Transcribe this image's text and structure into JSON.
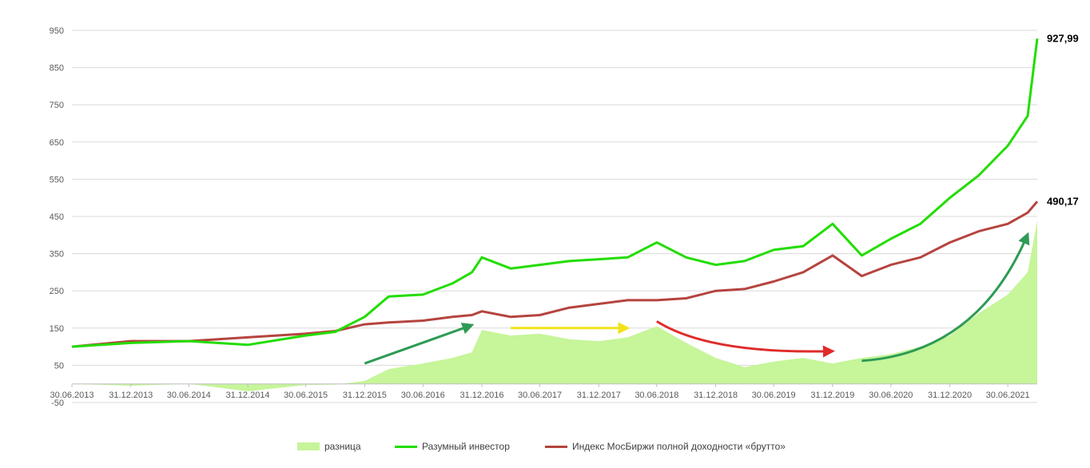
{
  "chart_data": {
    "type": "area",
    "ylim": [
      -50,
      950
    ],
    "yticks": [
      950,
      850,
      750,
      650,
      550,
      450,
      350,
      250,
      150,
      50,
      -50
    ],
    "x_tick_labels": [
      "30.06.2013",
      "31.12.2013",
      "30.06.2014",
      "31.12.2014",
      "30.06.2015",
      "31.12.2015",
      "30.06.2016",
      "31.12.2016",
      "30.06.2017",
      "31.12.2017",
      "30.06.2018",
      "31.12.2018",
      "30.06.2019",
      "31.12.2019",
      "30.06.2020",
      "31.12.2020",
      "30.06.2021"
    ],
    "grid": "horizontal",
    "legend_position": "bottom",
    "colors": {
      "difference": "#c6f59a",
      "investor": "#22dd00",
      "index": "#b5443f"
    },
    "series": [
      {
        "name": "разница",
        "type": "area",
        "x": [
          "30.06.2013",
          "31.12.2013",
          "30.06.2014",
          "31.12.2014",
          "30.06.2015",
          "30.09.2015",
          "31.12.2015",
          "15.03.2016",
          "30.06.2016",
          "30.09.2016",
          "30.11.2016",
          "31.12.2016",
          "31.03.2017",
          "30.06.2017",
          "30.09.2017",
          "31.12.2017",
          "31.03.2018",
          "30.06.2018",
          "30.09.2018",
          "31.12.2018",
          "31.03.2019",
          "30.06.2019",
          "30.09.2019",
          "31.12.2019",
          "31.03.2020",
          "30.06.2020",
          "30.09.2020",
          "31.12.2020",
          "31.03.2021",
          "30.06.2021",
          "31.08.2021",
          "30.09.2021"
        ],
        "values": [
          0,
          -5,
          0,
          -20,
          -3,
          -2,
          8,
          40,
          55,
          70,
          85,
          145,
          130,
          135,
          120,
          115,
          125,
          155,
          110,
          70,
          45,
          60,
          70,
          55,
          70,
          80,
          100,
          130,
          190,
          240,
          300,
          438
        ]
      },
      {
        "name": "Разумный инвестор",
        "type": "line",
        "x": [
          "30.06.2013",
          "31.12.2013",
          "30.06.2014",
          "31.12.2014",
          "30.06.2015",
          "30.09.2015",
          "31.12.2015",
          "15.03.2016",
          "30.06.2016",
          "30.09.2016",
          "30.11.2016",
          "31.12.2016",
          "31.03.2017",
          "30.06.2017",
          "30.09.2017",
          "31.12.2017",
          "31.03.2018",
          "30.06.2018",
          "30.09.2018",
          "31.12.2018",
          "31.03.2019",
          "30.06.2019",
          "30.09.2019",
          "31.12.2019",
          "31.03.2020",
          "30.06.2020",
          "30.09.2020",
          "31.12.2020",
          "31.03.2021",
          "30.06.2021",
          "31.08.2021",
          "30.09.2021"
        ],
        "values": [
          100,
          110,
          115,
          105,
          130,
          140,
          180,
          235,
          240,
          270,
          300,
          340,
          310,
          320,
          330,
          335,
          340,
          380,
          340,
          320,
          330,
          360,
          370,
          430,
          345,
          390,
          430,
          500,
          560,
          640,
          720,
          927.99
        ]
      },
      {
        "name": "Индекс МосБиржи полной доходности «брутто»",
        "type": "line",
        "x": [
          "30.06.2013",
          "31.12.2013",
          "30.06.2014",
          "31.12.2014",
          "30.06.2015",
          "30.09.2015",
          "31.12.2015",
          "15.03.2016",
          "30.06.2016",
          "30.09.2016",
          "30.11.2016",
          "31.12.2016",
          "31.03.2017",
          "30.06.2017",
          "30.09.2017",
          "31.12.2017",
          "31.03.2018",
          "30.06.2018",
          "30.09.2018",
          "31.12.2018",
          "31.03.2019",
          "30.06.2019",
          "30.09.2019",
          "31.12.2019",
          "31.03.2020",
          "30.06.2020",
          "30.09.2020",
          "31.12.2020",
          "31.03.2021",
          "30.06.2021",
          "31.08.2021",
          "30.09.2021"
        ],
        "values": [
          100,
          115,
          115,
          125,
          135,
          142,
          160,
          165,
          170,
          180,
          185,
          195,
          180,
          185,
          205,
          215,
          225,
          225,
          230,
          250,
          255,
          275,
          300,
          345,
          290,
          320,
          340,
          380,
          410,
          430,
          460,
          490.17
        ]
      }
    ],
    "end_labels": {
      "investor": "927,99",
      "index": "490,17"
    },
    "annotations": [
      {
        "color": "#2e9b55",
        "from_x": "31.12.2015",
        "from_y": 55,
        "to_x": "30.11.2016",
        "to_y": 158,
        "curved": false
      },
      {
        "color": "#f2e21b",
        "from_x": "31.03.2017",
        "from_y": 150,
        "to_x": "31.03.2018",
        "to_y": 150,
        "curved": false
      },
      {
        "color": "#e02b2b",
        "from_x": "30.06.2018",
        "from_y": 168,
        "to_x": "31.12.2019",
        "to_y": 88,
        "curved": true
      },
      {
        "color": "#2e9b55",
        "from_x": "31.03.2020",
        "from_y": 62,
        "to_x": "31.08.2021",
        "to_y": 402,
        "curved": true
      }
    ]
  },
  "legend": {
    "difference": "разница",
    "investor": "Разумный инвестор",
    "index": "Индекс МосБиржи полной доходности «брутто»"
  }
}
